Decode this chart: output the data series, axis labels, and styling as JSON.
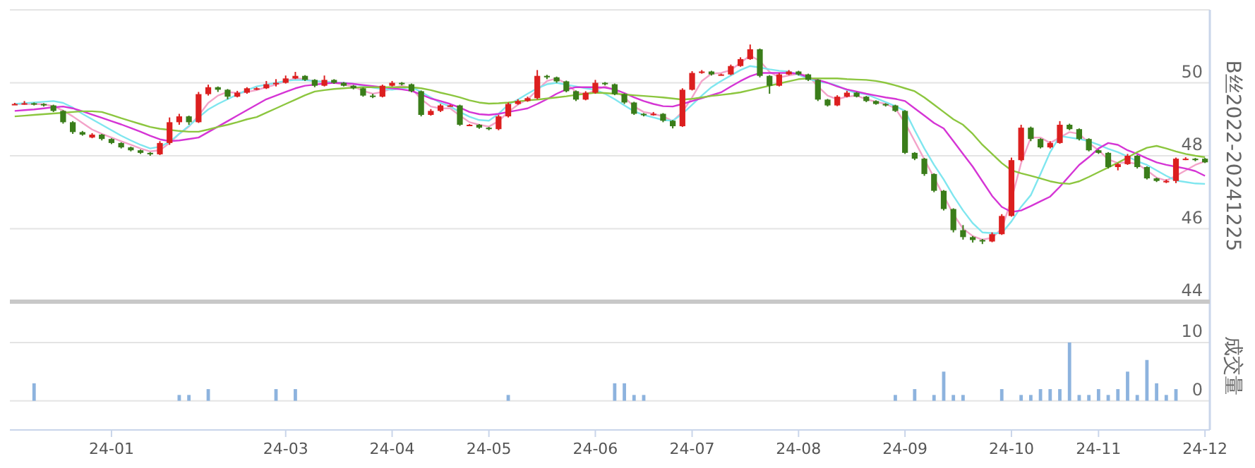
{
  "chart_data": [
    {
      "type": "candlestick",
      "ylabel": "B丝2022-20241225",
      "ylim": [
        44,
        52
      ],
      "yticks": [
        44,
        46,
        48,
        50,
        {
          "value": 52,
          "label": null
        }
      ],
      "grid": "y",
      "tick_labels": "y",
      "marker": "none",
      "line_style": "solid",
      "categories": [
        null,
        null,
        null,
        null,
        null,
        null,
        null,
        null,
        null,
        null,
        null,
        null,
        null,
        null,
        null,
        null,
        null,
        null,
        null,
        null,
        null,
        null,
        null,
        null,
        null,
        null,
        null,
        null,
        null,
        null,
        null,
        null,
        null,
        null,
        null,
        null,
        null,
        null,
        null,
        null,
        null,
        null,
        null,
        null,
        null,
        null,
        null,
        null,
        null,
        null,
        null,
        null,
        null,
        null,
        null,
        null,
        null,
        null,
        null,
        null,
        null,
        null,
        null,
        null,
        null,
        null,
        null,
        null,
        null,
        null,
        null,
        null,
        null,
        null,
        null,
        null,
        null,
        null,
        null,
        null,
        null,
        null,
        null,
        null,
        null,
        null,
        null,
        null,
        null,
        null,
        null,
        null,
        null,
        null,
        null,
        null,
        null,
        null,
        null,
        null,
        null,
        null,
        null,
        null,
        null,
        null,
        null,
        null,
        null,
        null,
        null,
        null,
        null,
        null,
        null,
        null,
        null,
        null,
        null,
        null,
        null,
        null,
        null,
        null
      ],
      "ohlc": [
        [
          49.42,
          49.45,
          49.4,
          49.42
        ],
        [
          49.42,
          49.5,
          49.4,
          49.44
        ],
        [
          49.44,
          49.46,
          49.38,
          49.42
        ],
        [
          49.42,
          49.44,
          49.35,
          49.38
        ],
        [
          49.38,
          49.4,
          49.2,
          49.23
        ],
        [
          49.23,
          49.25,
          48.88,
          48.92
        ],
        [
          48.92,
          48.95,
          48.6,
          48.65
        ],
        [
          48.65,
          48.68,
          48.55,
          48.58
        ],
        [
          48.5,
          48.62,
          48.48,
          48.58
        ],
        [
          48.58,
          48.6,
          48.42,
          48.46
        ],
        [
          48.46,
          48.48,
          48.32,
          48.35
        ],
        [
          48.35,
          48.37,
          48.2,
          48.23
        ],
        [
          48.23,
          48.25,
          48.12,
          48.15
        ],
        [
          48.15,
          48.17,
          48.05,
          48.08
        ],
        [
          48.08,
          48.1,
          48.0,
          48.04
        ],
        [
          48.04,
          48.4,
          48.02,
          48.35
        ],
        [
          48.35,
          49.05,
          48.3,
          48.92
        ],
        [
          48.92,
          49.15,
          48.85,
          49.08
        ],
        [
          49.08,
          49.1,
          48.85,
          48.92
        ],
        [
          48.92,
          49.75,
          48.9,
          49.69
        ],
        [
          49.69,
          49.95,
          49.65,
          49.88
        ],
        [
          49.88,
          49.9,
          49.75,
          49.81
        ],
        [
          49.81,
          49.83,
          49.55,
          49.62
        ],
        [
          49.62,
          49.78,
          49.6,
          49.73
        ],
        [
          49.73,
          49.88,
          49.7,
          49.85
        ],
        [
          49.85,
          49.88,
          49.8,
          49.85
        ],
        [
          49.85,
          50.05,
          49.83,
          49.96
        ],
        [
          49.96,
          50.1,
          49.9,
          50.0
        ],
        [
          50.0,
          50.2,
          49.98,
          50.12
        ],
        [
          50.12,
          50.3,
          50.1,
          50.19
        ],
        [
          50.19,
          50.21,
          50.05,
          50.08
        ],
        [
          50.08,
          50.1,
          49.88,
          49.92
        ],
        [
          49.92,
          50.2,
          49.9,
          50.08
        ],
        [
          50.08,
          50.1,
          49.97,
          50.0
        ],
        [
          50.0,
          50.02,
          49.9,
          49.92
        ],
        [
          49.92,
          49.94,
          49.82,
          49.85
        ],
        [
          49.85,
          49.87,
          49.62,
          49.65
        ],
        [
          49.65,
          49.7,
          49.58,
          49.62
        ],
        [
          49.62,
          49.95,
          49.6,
          49.92
        ],
        [
          49.92,
          50.05,
          49.9,
          50.0
        ],
        [
          50.0,
          50.02,
          49.93,
          49.96
        ],
        [
          49.96,
          49.98,
          49.74,
          49.77
        ],
        [
          49.77,
          49.79,
          49.08,
          49.12
        ],
        [
          49.12,
          49.28,
          49.1,
          49.23
        ],
        [
          49.23,
          49.42,
          49.2,
          49.38
        ],
        [
          49.38,
          49.4,
          49.35,
          49.38
        ],
        [
          49.38,
          49.4,
          48.82,
          48.85
        ],
        [
          48.85,
          48.87,
          48.82,
          48.85
        ],
        [
          48.85,
          48.87,
          48.74,
          48.77
        ],
        [
          48.77,
          48.79,
          48.7,
          48.73
        ],
        [
          48.73,
          49.12,
          48.7,
          49.08
        ],
        [
          49.08,
          49.46,
          49.05,
          49.42
        ],
        [
          49.42,
          49.55,
          49.4,
          49.5
        ],
        [
          49.5,
          49.62,
          49.48,
          49.58
        ],
        [
          49.58,
          50.35,
          49.55,
          50.19
        ],
        [
          50.19,
          50.22,
          50.1,
          50.15
        ],
        [
          50.15,
          50.17,
          50.0,
          50.04
        ],
        [
          50.04,
          50.06,
          49.74,
          49.77
        ],
        [
          49.77,
          49.79,
          49.5,
          49.54
        ],
        [
          49.54,
          49.77,
          49.52,
          49.73
        ],
        [
          49.73,
          50.08,
          49.7,
          50.0
        ],
        [
          50.0,
          50.02,
          49.93,
          49.96
        ],
        [
          49.96,
          49.98,
          49.66,
          49.69
        ],
        [
          49.69,
          49.71,
          49.42,
          49.46
        ],
        [
          49.46,
          49.48,
          49.12,
          49.15
        ],
        [
          49.15,
          49.17,
          49.08,
          49.12
        ],
        [
          49.12,
          49.2,
          49.1,
          49.15
        ],
        [
          49.15,
          49.17,
          48.92,
          48.96
        ],
        [
          48.96,
          48.98,
          48.75,
          48.81
        ],
        [
          48.81,
          49.85,
          48.79,
          49.81
        ],
        [
          49.81,
          50.32,
          49.79,
          50.27
        ],
        [
          50.27,
          50.35,
          50.25,
          50.31
        ],
        [
          50.31,
          50.33,
          50.2,
          50.23
        ],
        [
          50.23,
          50.25,
          50.2,
          50.23
        ],
        [
          50.23,
          50.5,
          50.21,
          50.46
        ],
        [
          50.46,
          50.7,
          50.44,
          50.65
        ],
        [
          50.65,
          51.05,
          50.63,
          50.92
        ],
        [
          50.92,
          50.94,
          50.15,
          50.19
        ],
        [
          50.19,
          50.21,
          49.7,
          49.92
        ],
        [
          49.92,
          50.27,
          49.9,
          50.23
        ],
        [
          50.23,
          50.35,
          50.21,
          50.31
        ],
        [
          50.31,
          50.33,
          50.2,
          50.23
        ],
        [
          50.23,
          50.25,
          50.05,
          50.08
        ],
        [
          50.08,
          50.1,
          49.5,
          49.54
        ],
        [
          49.54,
          49.56,
          49.35,
          49.38
        ],
        [
          49.38,
          49.66,
          49.36,
          49.62
        ],
        [
          49.62,
          49.78,
          49.6,
          49.73
        ],
        [
          49.73,
          49.75,
          49.6,
          49.62
        ],
        [
          49.62,
          49.64,
          49.47,
          49.5
        ],
        [
          49.5,
          49.52,
          49.4,
          49.42
        ],
        [
          49.42,
          49.44,
          49.35,
          49.38
        ],
        [
          49.38,
          49.4,
          49.2,
          49.23
        ],
        [
          49.23,
          49.25,
          48.05,
          48.08
        ],
        [
          48.08,
          48.1,
          47.88,
          47.92
        ],
        [
          47.92,
          47.94,
          47.45,
          47.5
        ],
        [
          47.5,
          47.52,
          47.0,
          47.04
        ],
        [
          47.04,
          47.06,
          46.5,
          46.54
        ],
        [
          46.54,
          46.56,
          45.9,
          45.96
        ],
        [
          45.96,
          46.1,
          45.7,
          45.77
        ],
        [
          45.77,
          45.8,
          45.62,
          45.69
        ],
        [
          45.69,
          45.72,
          45.58,
          45.65
        ],
        [
          45.65,
          45.9,
          45.63,
          45.85
        ],
        [
          45.85,
          46.4,
          45.83,
          46.35
        ],
        [
          46.35,
          47.95,
          46.33,
          47.88
        ],
        [
          47.88,
          48.85,
          47.85,
          48.77
        ],
        [
          48.77,
          48.8,
          48.4,
          48.46
        ],
        [
          48.46,
          48.48,
          48.2,
          48.23
        ],
        [
          48.23,
          48.4,
          48.2,
          48.35
        ],
        [
          48.35,
          48.95,
          48.33,
          48.85
        ],
        [
          48.85,
          48.88,
          48.7,
          48.73
        ],
        [
          48.73,
          48.75,
          48.42,
          48.46
        ],
        [
          48.46,
          48.48,
          48.12,
          48.15
        ],
        [
          48.15,
          48.17,
          48.05,
          48.08
        ],
        [
          48.08,
          48.1,
          47.65,
          47.69
        ],
        [
          47.69,
          47.8,
          47.6,
          47.77
        ],
        [
          47.77,
          48.05,
          47.75,
          48.0
        ],
        [
          48.0,
          48.02,
          47.65,
          47.69
        ],
        [
          47.69,
          47.71,
          47.35,
          47.38
        ],
        [
          47.38,
          47.4,
          47.28,
          47.31
        ],
        [
          47.31,
          47.35,
          47.25,
          47.31
        ],
        [
          47.31,
          47.95,
          47.25,
          47.92
        ],
        [
          47.92,
          47.96,
          47.88,
          47.92
        ],
        [
          47.92,
          47.94,
          47.85,
          47.88
        ],
        [
          47.92,
          47.94,
          47.8,
          47.82
        ]
      ],
      "series": [
        {
          "type": "line",
          "color": "#f3a3c9",
          "values": [
            49.42,
            49.42,
            49.42,
            49.41,
            49.36,
            49.24,
            49.08,
            48.9,
            48.72,
            48.6,
            48.5,
            48.4,
            48.3,
            48.2,
            48.12,
            48.15,
            48.35,
            48.6,
            48.8,
            49.1,
            49.45,
            49.65,
            49.75,
            49.72,
            49.75,
            49.8,
            49.88,
            49.95,
            50.05,
            50.12,
            50.1,
            50.04,
            50.02,
            50.0,
            49.95,
            49.9,
            49.78,
            49.7,
            49.75,
            49.85,
            49.92,
            49.85,
            49.55,
            49.35,
            49.3,
            49.3,
            49.1,
            48.92,
            48.85,
            48.8,
            48.95,
            49.2,
            49.4,
            49.55,
            49.8,
            50.05,
            50.12,
            49.98,
            49.75,
            49.68,
            49.8,
            49.9,
            49.8,
            49.6,
            49.35,
            49.2,
            49.15,
            49.08,
            48.95,
            49.2,
            49.6,
            50.05,
            50.25,
            50.27,
            50.35,
            50.55,
            50.75,
            50.6,
            50.3,
            50.15,
            50.2,
            50.25,
            50.2,
            49.9,
            49.65,
            49.55,
            49.62,
            49.65,
            49.55,
            49.48,
            49.42,
            49.3,
            48.9,
            48.4,
            47.9,
            47.4,
            46.9,
            46.4,
            46.0,
            45.8,
            45.7,
            45.75,
            46.0,
            46.8,
            47.8,
            48.5,
            48.5,
            48.35,
            48.5,
            48.65,
            48.6,
            48.35,
            48.15,
            47.9,
            47.8,
            47.82,
            47.78,
            47.6,
            47.4,
            47.32,
            47.45,
            47.6,
            47.75,
            47.85
          ]
        },
        {
          "type": "line",
          "color": "#7fe6ef",
          "values": [
            49.42,
            49.44,
            49.46,
            49.48,
            49.5,
            49.45,
            49.32,
            49.15,
            49.0,
            48.85,
            48.7,
            48.55,
            48.42,
            48.3,
            48.2,
            48.25,
            48.38,
            48.6,
            48.82,
            49.05,
            49.27,
            49.42,
            49.55,
            49.68,
            49.8,
            49.9,
            49.95,
            50.0,
            50.05,
            50.08,
            50.07,
            50.05,
            50.03,
            50.01,
            50.0,
            49.97,
            49.92,
            49.87,
            49.83,
            49.81,
            49.85,
            49.88,
            49.75,
            49.6,
            49.45,
            49.35,
            49.2,
            49.07,
            48.98,
            48.96,
            49.15,
            49.4,
            49.54,
            49.7,
            49.85,
            49.96,
            50.0,
            49.95,
            49.9,
            49.85,
            49.81,
            49.7,
            49.55,
            49.38,
            49.22,
            49.12,
            49.05,
            48.98,
            48.96,
            49.15,
            49.4,
            49.65,
            49.88,
            50.05,
            50.2,
            50.35,
            50.46,
            50.42,
            50.37,
            50.33,
            50.31,
            50.22,
            50.12,
            50.03,
            50.0,
            49.92,
            49.8,
            49.72,
            49.69,
            49.58,
            49.47,
            49.36,
            49.23,
            48.7,
            48.2,
            47.75,
            47.35,
            46.9,
            46.5,
            46.15,
            45.9,
            45.88,
            45.88,
            46.2,
            46.6,
            46.92,
            47.5,
            48.1,
            48.54,
            48.5,
            48.46,
            48.4,
            48.3,
            48.19,
            48.1,
            47.98,
            47.85,
            47.75,
            47.6,
            47.45,
            47.32,
            47.28,
            47.24,
            47.23
          ]
        },
        {
          "type": "line",
          "color": "#d535d5",
          "values": [
            49.23,
            49.25,
            49.27,
            49.3,
            49.33,
            49.35,
            49.3,
            49.22,
            49.13,
            49.04,
            48.95,
            48.86,
            48.76,
            48.66,
            48.55,
            48.45,
            48.4,
            48.42,
            48.46,
            48.5,
            48.65,
            48.8,
            48.95,
            49.1,
            49.25,
            49.4,
            49.55,
            49.65,
            49.75,
            49.85,
            49.92,
            49.95,
            49.98,
            50.0,
            49.99,
            49.97,
            49.94,
            49.91,
            49.88,
            49.85,
            49.82,
            49.78,
            49.68,
            49.57,
            49.5,
            49.42,
            49.32,
            49.2,
            49.14,
            49.12,
            49.15,
            49.2,
            49.25,
            49.3,
            49.42,
            49.55,
            49.7,
            49.82,
            49.88,
            49.88,
            49.88,
            49.87,
            49.82,
            49.72,
            49.6,
            49.5,
            49.42,
            49.36,
            49.35,
            49.42,
            49.5,
            49.58,
            49.66,
            49.74,
            49.9,
            50.05,
            50.18,
            50.27,
            50.27,
            50.27,
            50.27,
            50.25,
            50.15,
            50.08,
            50.0,
            49.9,
            49.82,
            49.76,
            49.7,
            49.65,
            49.6,
            49.56,
            49.5,
            49.3,
            49.1,
            48.9,
            48.75,
            48.4,
            48.05,
            47.7,
            47.3,
            46.9,
            46.6,
            46.46,
            46.5,
            46.62,
            46.75,
            46.88,
            47.15,
            47.45,
            47.75,
            47.96,
            48.2,
            48.35,
            48.3,
            48.15,
            48.05,
            47.93,
            47.82,
            47.75,
            47.7,
            47.65,
            47.58,
            47.45
          ]
        },
        {
          "type": "line",
          "color": "#8cc63f",
          "values": [
            49.08,
            49.1,
            49.12,
            49.14,
            49.16,
            49.18,
            49.2,
            49.22,
            49.22,
            49.2,
            49.12,
            49.03,
            48.95,
            48.87,
            48.79,
            48.74,
            48.71,
            48.68,
            48.66,
            48.66,
            48.72,
            48.79,
            48.85,
            48.92,
            49.0,
            49.06,
            49.18,
            49.3,
            49.42,
            49.54,
            49.66,
            49.76,
            49.8,
            49.83,
            49.85,
            49.87,
            49.88,
            49.88,
            49.88,
            49.88,
            49.88,
            49.88,
            49.85,
            49.8,
            49.73,
            49.67,
            49.6,
            49.52,
            49.46,
            49.43,
            49.44,
            49.46,
            49.49,
            49.52,
            49.54,
            49.57,
            49.6,
            49.63,
            49.67,
            49.7,
            49.73,
            49.72,
            49.7,
            49.68,
            49.66,
            49.64,
            49.62,
            49.6,
            49.57,
            49.54,
            49.56,
            49.6,
            49.64,
            49.67,
            49.7,
            49.74,
            49.8,
            49.86,
            49.92,
            49.98,
            50.04,
            50.1,
            50.12,
            50.12,
            50.12,
            50.12,
            50.1,
            50.09,
            50.08,
            50.05,
            50.0,
            49.93,
            49.85,
            49.77,
            49.6,
            49.4,
            49.2,
            49.0,
            48.85,
            48.6,
            48.3,
            48.05,
            47.8,
            47.6,
            47.52,
            47.45,
            47.38,
            47.3,
            47.25,
            47.23,
            47.3,
            47.42,
            47.55,
            47.68,
            47.81,
            47.95,
            48.1,
            48.22,
            48.27,
            48.2,
            48.12,
            48.05,
            48.0,
            47.96
          ]
        }
      ]
    },
    {
      "type": "bar",
      "ylabel": "成交量",
      "ylim": [
        -5,
        17
      ],
      "yticks": [
        0,
        10
      ],
      "grid": "y",
      "color": "#8db3de",
      "categories": [
        null,
        null,
        null,
        null,
        null,
        null,
        null,
        null,
        null,
        null,
        "24-01",
        null,
        null,
        null,
        null,
        null,
        null,
        null,
        null,
        null,
        null,
        null,
        null,
        null,
        null,
        null,
        null,
        null,
        "24-03",
        null,
        null,
        null,
        null,
        null,
        null,
        null,
        null,
        null,
        null,
        "24-04",
        null,
        null,
        null,
        null,
        null,
        null,
        null,
        null,
        null,
        "24-05",
        null,
        null,
        null,
        null,
        null,
        null,
        null,
        null,
        null,
        null,
        "24-06",
        null,
        null,
        null,
        null,
        null,
        null,
        null,
        null,
        null,
        "24-07",
        null,
        null,
        null,
        null,
        null,
        null,
        null,
        null,
        null,
        null,
        "24-08",
        null,
        null,
        null,
        null,
        null,
        null,
        null,
        null,
        null,
        null,
        "24-09",
        null,
        null,
        null,
        null,
        null,
        null,
        null,
        null,
        null,
        null,
        "24-10",
        null,
        null,
        null,
        null,
        null,
        null,
        null,
        null,
        "24-11",
        null,
        null,
        null,
        null,
        null,
        null,
        null,
        null,
        null,
        null,
        "24-12"
      ],
      "values": [
        0,
        0,
        3,
        0,
        0,
        0,
        0,
        0,
        0,
        0,
        0,
        0,
        0,
        0,
        0,
        0,
        0,
        1,
        1,
        0,
        2,
        0,
        0,
        0,
        0,
        0,
        0,
        2,
        0,
        2,
        0,
        0,
        0,
        0,
        0,
        0,
        0,
        0,
        0,
        0,
        0,
        0,
        0,
        0,
        0,
        0,
        0,
        0,
        0,
        0,
        0,
        1,
        0,
        0,
        0,
        0,
        0,
        0,
        0,
        0,
        0,
        0,
        3,
        3,
        1,
        1,
        0,
        0,
        0,
        0,
        0,
        0,
        0,
        0,
        0,
        0,
        0,
        0,
        0,
        0,
        0,
        0,
        0,
        0,
        0,
        0,
        0,
        0,
        0,
        0,
        0,
        1,
        0,
        2,
        0,
        1,
        5,
        1,
        1,
        0,
        0,
        0,
        2,
        0,
        1,
        1,
        2,
        2,
        2,
        10,
        1,
        1,
        2,
        1,
        2,
        5,
        1,
        7,
        3,
        1,
        2,
        0,
        0,
        0
      ]
    }
  ]
}
